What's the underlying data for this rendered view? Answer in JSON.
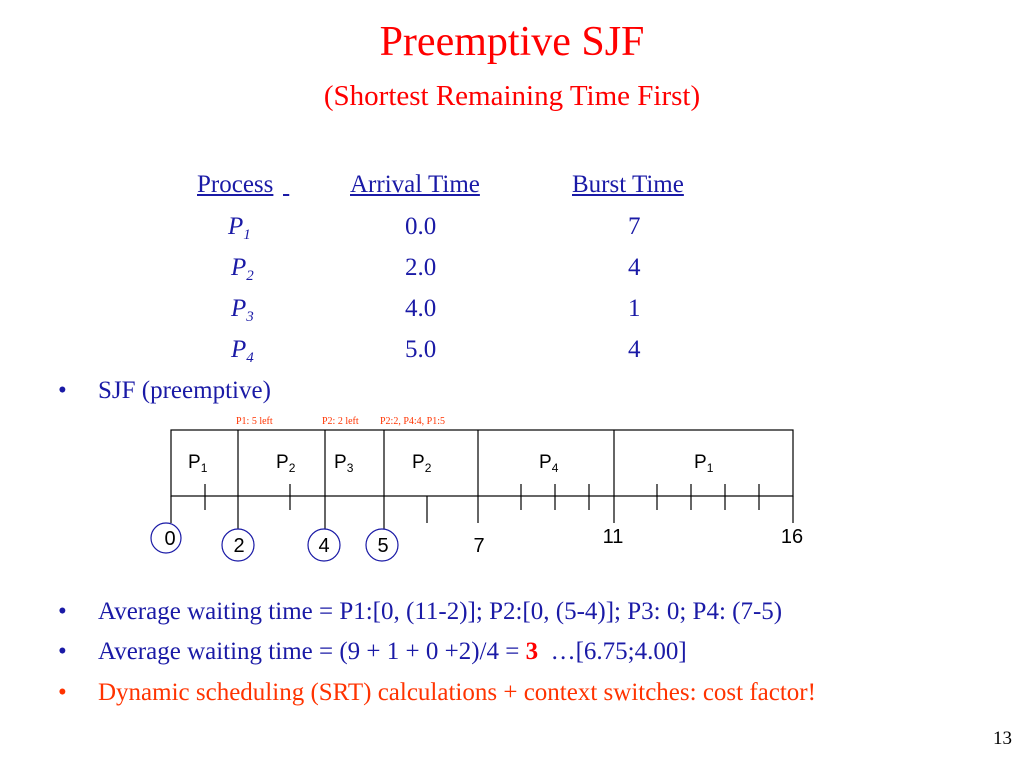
{
  "title": "Preemptive SJF",
  "subtitle": "(Shortest Remaining Time First)",
  "table": {
    "headers": {
      "process": "Process",
      "arrival": "Arrival Time",
      "burst": "Burst Time"
    },
    "rows": [
      {
        "p": "P",
        "sub": "1",
        "arrival": "0.0",
        "burst": "7"
      },
      {
        "p": "P",
        "sub": "2",
        "arrival": "2.0",
        "burst": "4"
      },
      {
        "p": "P",
        "sub": "3",
        "arrival": "4.0",
        "burst": "1"
      },
      {
        "p": "P",
        "sub": "4",
        "arrival": "5.0",
        "burst": "4"
      }
    ]
  },
  "bullets": {
    "b1": "SJF (preemptive)",
    "b2": "Average waiting time = P1:[0, (11-2)]; P2:[0, (5-4)]; P3: 0; P4: (7-5)",
    "b3_prefix": "Average waiting time = (9 + 1 + 0 +2)/4 = ",
    "b3_bold": "3",
    "b3_suffix": "  …[6.75;4.00]",
    "b4": "Dynamic scheduling (SRT) calculations + context switches: cost factor!",
    "marker": "•"
  },
  "gantt": {
    "notes": [
      "P1: 5 left",
      "P2: 2 left",
      "P2:2, P4:4, P1:5"
    ],
    "blocks": [
      {
        "label": "P",
        "sub": "1"
      },
      {
        "label": "P",
        "sub": "2"
      },
      {
        "label": "P",
        "sub": "3"
      },
      {
        "label": "P",
        "sub": "2"
      },
      {
        "label": "P",
        "sub": "4"
      },
      {
        "label": "P",
        "sub": "1"
      }
    ],
    "times": [
      "0",
      "2",
      "4",
      "5",
      "7",
      "11",
      "16"
    ]
  },
  "slide_number": "13"
}
